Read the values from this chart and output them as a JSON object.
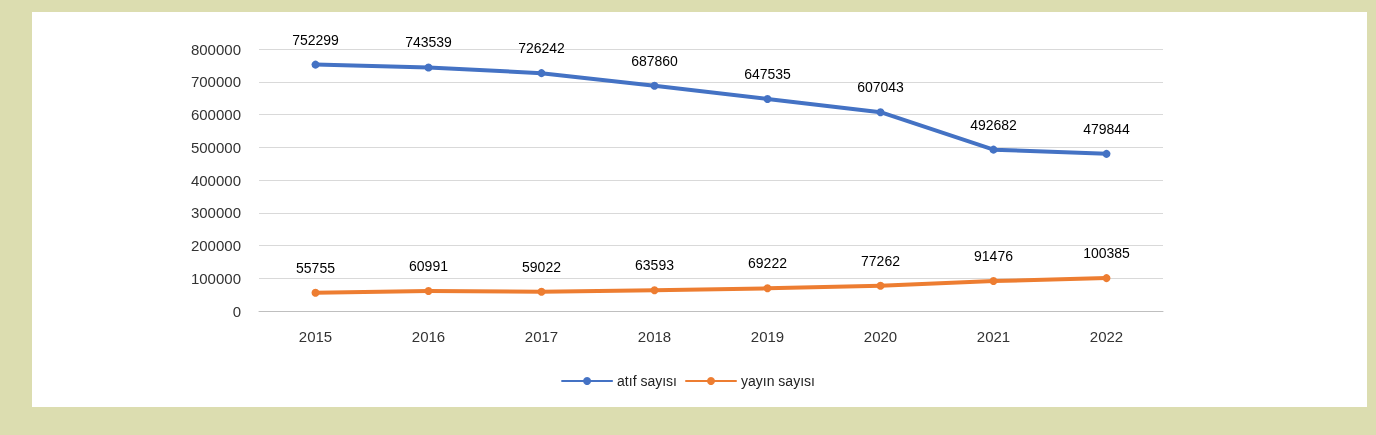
{
  "chart_data": {
    "type": "line",
    "categories": [
      "2015",
      "2016",
      "2017",
      "2018",
      "2019",
      "2020",
      "2021",
      "2022"
    ],
    "series": [
      {
        "name": "atıf sayısı",
        "color": "#4472c4",
        "values": [
          752299,
          743539,
          726242,
          687860,
          647535,
          607043,
          492682,
          479844
        ]
      },
      {
        "name": "yayın sayısı",
        "color": "#ed7d31",
        "values": [
          55755,
          60991,
          59022,
          63593,
          69222,
          77262,
          91476,
          100385
        ]
      }
    ],
    "ylim": [
      0,
      800000
    ],
    "yticks": [
      0,
      100000,
      200000,
      300000,
      400000,
      500000,
      600000,
      700000,
      800000
    ],
    "grid": "y",
    "legend": "bottom",
    "marker": "circle",
    "data_labels": true
  }
}
